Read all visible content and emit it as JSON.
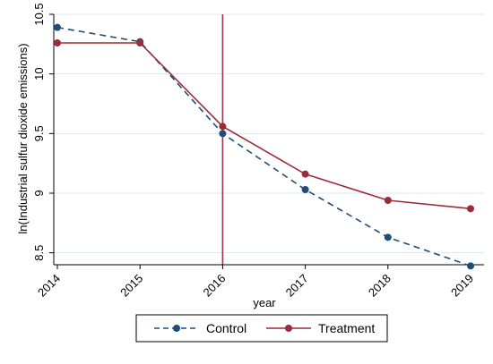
{
  "chart_data": {
    "type": "line",
    "xlabel": "year",
    "ylabel": "ln(Industrial sulfur dioxide emissions)",
    "x": [
      2014,
      2015,
      2016,
      2017,
      2018,
      2019
    ],
    "x_tick_labels": [
      "2014",
      "2015",
      "2016",
      "2017",
      "2018",
      "2019"
    ],
    "xlim": [
      2014,
      2019
    ],
    "ylim": [
      8.4,
      10.5
    ],
    "y_ticks": [
      8.5,
      9,
      9.5,
      10,
      10.5
    ],
    "y_tick_labels": [
      "8.5",
      "9",
      "9.5",
      "10",
      "10.5"
    ],
    "grid": "horizontal",
    "vertical_reference_line": 2016,
    "legend_position": "bottom",
    "series": [
      {
        "name": "Control",
        "color": "#1f4e79",
        "line_style": "dashed",
        "values": [
          10.39,
          10.27,
          9.5,
          9.03,
          8.63,
          8.39
        ]
      },
      {
        "name": "Treatment",
        "color": "#9b2c3a",
        "line_style": "solid",
        "values": [
          10.26,
          10.26,
          9.56,
          9.16,
          8.94,
          8.87
        ]
      }
    ],
    "colors": {
      "reference_line": "#a0354f",
      "grid": "#dde6ea",
      "axis": "#000000"
    }
  }
}
